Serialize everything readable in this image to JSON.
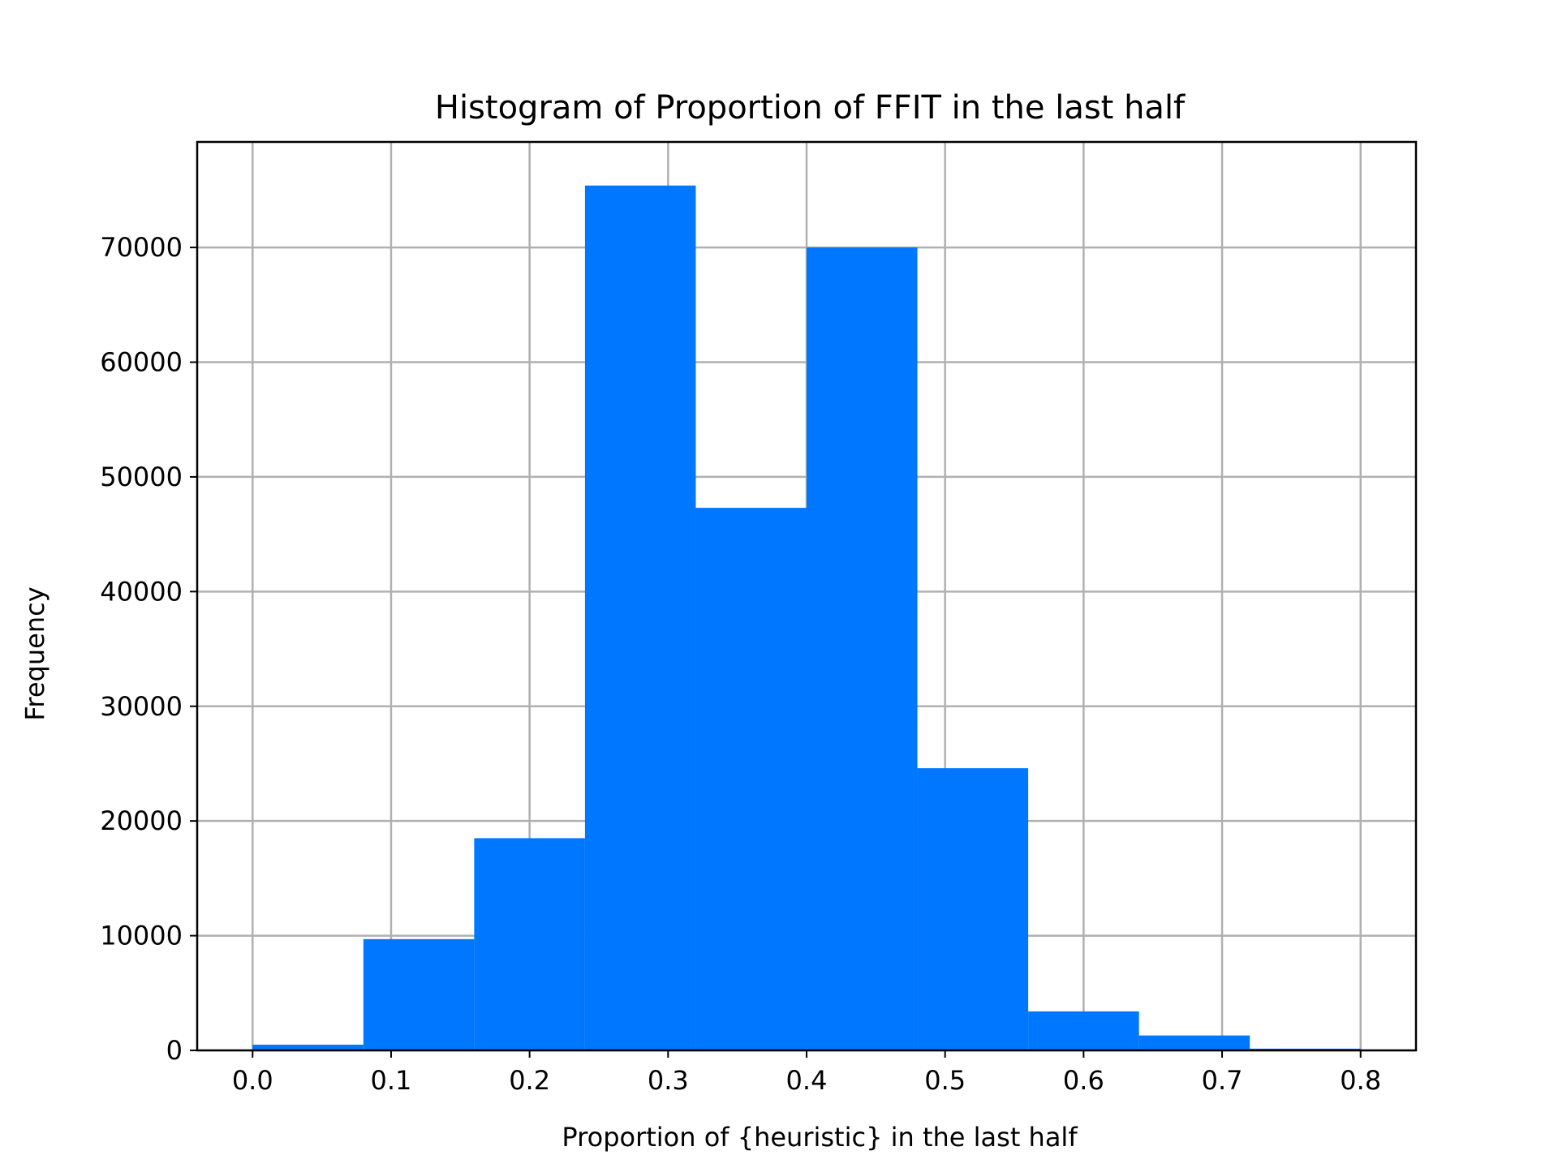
{
  "chart_data": {
    "type": "bar",
    "title": "Histogram of Proportion of FFIT in the last half",
    "xlabel": "Proportion of {heuristic} in the last half",
    "ylabel": "Frequency",
    "bin_edges": [
      0.0,
      0.08,
      0.16,
      0.24,
      0.32,
      0.4,
      0.48,
      0.56,
      0.64,
      0.72,
      0.8
    ],
    "values": [
      500,
      9700,
      18500,
      75400,
      47300,
      70000,
      24600,
      3400,
      1300,
      150
    ],
    "xlim": [
      -0.04,
      0.84
    ],
    "ylim": [
      0,
      79200
    ],
    "xticks": [
      0.0,
      0.1,
      0.2,
      0.3,
      0.4,
      0.5,
      0.6,
      0.7,
      0.8
    ],
    "xtick_labels": [
      "0.0",
      "0.1",
      "0.2",
      "0.3",
      "0.4",
      "0.5",
      "0.6",
      "0.7",
      "0.8"
    ],
    "yticks": [
      0,
      10000,
      20000,
      30000,
      40000,
      50000,
      60000,
      70000
    ],
    "ytick_labels": [
      "0",
      "10000",
      "20000",
      "30000",
      "40000",
      "50000",
      "60000",
      "70000"
    ],
    "grid": true,
    "bar_color": "#0077ff"
  }
}
